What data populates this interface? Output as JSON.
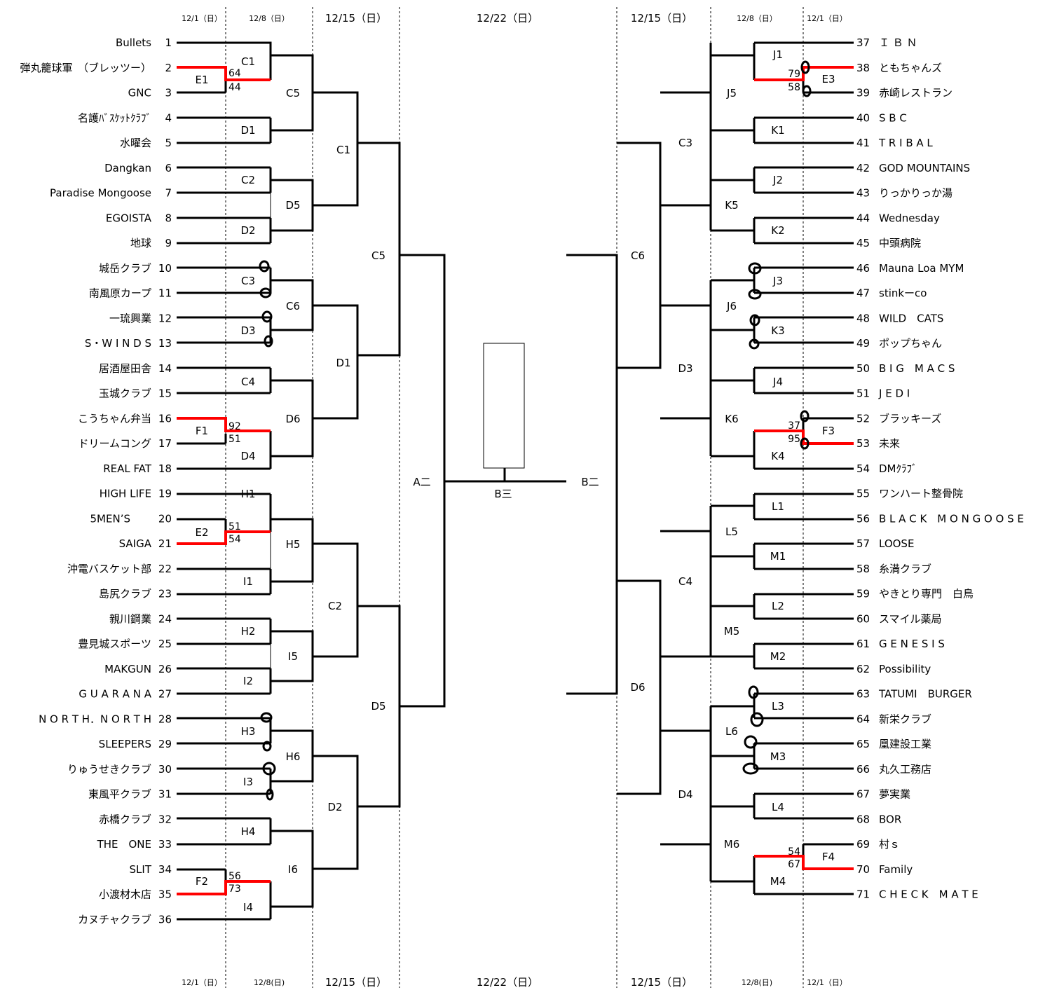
{
  "dates": {
    "top": [
      "12/1（日）",
      "12/8（日）",
      "12/15（日）",
      "12/22（日）",
      "12/15（日）",
      "12/8（日）",
      "12/1（日）"
    ],
    "bottom": [
      "12/1（日）",
      "12/8(日)",
      "12/15（日）",
      "12/22（日）",
      "12/15（日）",
      "12/8(日)",
      "12/1（日）"
    ]
  },
  "teams_left": [
    {
      "name": "Bullets",
      "num": "1"
    },
    {
      "name": "弾丸籠球軍　（ブレッツー）",
      "num": "2"
    },
    {
      "name": "GNC",
      "num": "3"
    },
    {
      "name": "名護ﾊﾞｽｹｯﾄｸﾗﾌﾞ",
      "num": "4"
    },
    {
      "name": "水曜会",
      "num": "5"
    },
    {
      "name": "Dangkan",
      "num": "6"
    },
    {
      "name": "Paradise Mongoose",
      "num": "7"
    },
    {
      "name": "EGOISTA",
      "num": "8"
    },
    {
      "name": "地球",
      "num": "9"
    },
    {
      "name": "城岳クラブ",
      "num": "10"
    },
    {
      "name": "南風原カープ",
      "num": "11"
    },
    {
      "name": "一琉興業",
      "num": "12"
    },
    {
      "name": "S・W I N D S",
      "num": "13"
    },
    {
      "name": "居酒屋田舎",
      "num": "14"
    },
    {
      "name": "玉城クラブ",
      "num": "15"
    },
    {
      "name": "こうちゃん弁当",
      "num": "16"
    },
    {
      "name": "ドリームコング",
      "num": "17"
    },
    {
      "name": "REAL FAT",
      "num": "18"
    },
    {
      "name": "HIGH LIFE",
      "num": "19"
    },
    {
      "name": "5MEN’S　　",
      "num": "20"
    },
    {
      "name": "SAIGA",
      "num": "21"
    },
    {
      "name": "沖電バスケット部",
      "num": "22"
    },
    {
      "name": "島尻クラブ",
      "num": "23"
    },
    {
      "name": "親川鋼業",
      "num": "24"
    },
    {
      "name": "豊見城スポーツ",
      "num": "25"
    },
    {
      "name": "MAKGUN",
      "num": "26"
    },
    {
      "name": "G U A R A N A",
      "num": "27"
    },
    {
      "name": "N O R T H．N O R T H",
      "num": "28"
    },
    {
      "name": "SLEEPERS",
      "num": "29"
    },
    {
      "name": "りゅうせきクラブ",
      "num": "30"
    },
    {
      "name": "東風平クラブ",
      "num": "31"
    },
    {
      "name": "赤橋クラブ",
      "num": "32"
    },
    {
      "name": "THE　ONE",
      "num": "33"
    },
    {
      "name": "SLIT",
      "num": "34"
    },
    {
      "name": "小渡材木店",
      "num": "35"
    },
    {
      "name": "カヌチャクラブ",
      "num": "36"
    }
  ],
  "teams_right": [
    {
      "num": "37",
      "name": "Ｉ Ｂ Ｎ"
    },
    {
      "num": "38",
      "name": "ともちゃんズ"
    },
    {
      "num": "39",
      "name": "赤崎レストラン"
    },
    {
      "num": "40",
      "name": "S B C"
    },
    {
      "num": "41",
      "name": "T R I B A L"
    },
    {
      "num": "42",
      "name": "GOD MOUNTAINS"
    },
    {
      "num": "43",
      "name": "りっかりっか湯"
    },
    {
      "num": "44",
      "name": "Wednesday"
    },
    {
      "num": "45",
      "name": "中頭病院"
    },
    {
      "num": "46",
      "name": "Mauna Loa MYM"
    },
    {
      "num": "47",
      "name": "stinkーco"
    },
    {
      "num": "48",
      "name": "WILD　CATS"
    },
    {
      "num": "49",
      "name": "ポップちゃん"
    },
    {
      "num": "50",
      "name": "B I G　M A C S"
    },
    {
      "num": "51",
      "name": "J E D I"
    },
    {
      "num": "52",
      "name": "ブラッキーズ"
    },
    {
      "num": "53",
      "name": "未来"
    },
    {
      "num": "54",
      "name": "DMｸﾗﾌﾞ"
    },
    {
      "num": "55",
      "name": "ワンハート整骨院"
    },
    {
      "num": "56",
      "name": "B L A C K　M O N G O O S E"
    },
    {
      "num": "57",
      "name": "LOOSE"
    },
    {
      "num": "58",
      "name": "糸満クラブ"
    },
    {
      "num": "59",
      "name": "やきとり専門　白鳥"
    },
    {
      "num": "60",
      "name": "スマイル薬局"
    },
    {
      "num": "61",
      "name": "G E N E S I S"
    },
    {
      "num": "62",
      "name": "Possibility"
    },
    {
      "num": "63",
      "name": "TATUMI　BURGER"
    },
    {
      "num": "64",
      "name": "新栄クラブ"
    },
    {
      "num": "65",
      "name": "凰建設工業"
    },
    {
      "num": "66",
      "name": "丸久工務店"
    },
    {
      "num": "67",
      "name": "夢実業"
    },
    {
      "num": "68",
      "name": "BOR"
    },
    {
      "num": "69",
      "name": "村ｓ"
    },
    {
      "num": "70",
      "name": "Family"
    },
    {
      "num": "71",
      "name": "C H E C K　M A T E"
    }
  ],
  "codes_left": [
    "C1",
    "E1",
    "D1",
    "C2",
    "D2",
    "C5",
    "D5",
    "C3",
    "D3",
    "C6",
    "C4",
    "F1",
    "D4",
    "D6",
    "H1",
    "E2",
    "I1",
    "H5",
    "H2",
    "I2",
    "I5",
    "H3",
    "I3",
    "H6",
    "H4",
    "F2",
    "I4",
    "I6",
    "C1",
    "D1",
    "C2",
    "D2",
    "C5",
    "D5",
    "A二"
  ],
  "codes_center": [
    "B三"
  ],
  "codes_right": [
    "J1",
    "E3",
    "K1",
    "J5",
    "J2",
    "K2",
    "K5",
    "C3",
    "J3",
    "K3",
    "J6",
    "J4",
    "F3",
    "K4",
    "K6",
    "D3",
    "C6",
    "L1",
    "M1",
    "L5",
    "L2",
    "M2",
    "M5",
    "C4",
    "L3",
    "M3",
    "L6",
    "L4",
    "F4",
    "M4",
    "M6",
    "D4",
    "D6",
    "B二"
  ],
  "scores": {
    "E1": [
      "64",
      "44"
    ],
    "F1": [
      "92",
      "51"
    ],
    "E2": [
      "51",
      "54"
    ],
    "F2": [
      "56",
      "73"
    ],
    "E3": [
      "79",
      "58"
    ],
    "F3": [
      "37",
      "95"
    ],
    "F4": [
      "54",
      "67"
    ]
  },
  "colors": {
    "line": "#000000",
    "winner": "#ff0000"
  }
}
